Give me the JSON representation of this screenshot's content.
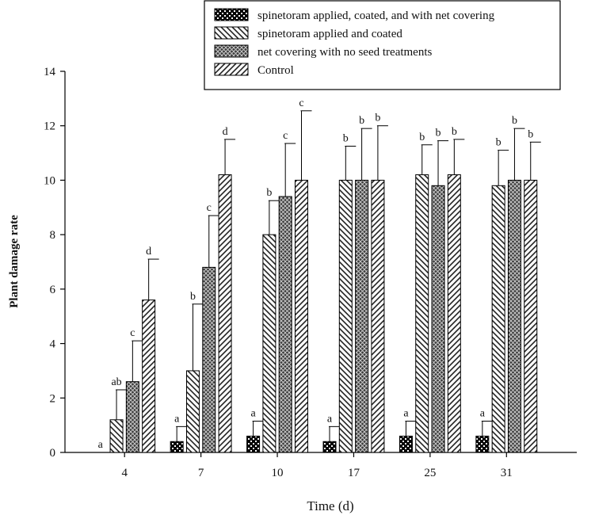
{
  "chart_data": {
    "type": "bar",
    "title": "",
    "xlabel": "Time (d)",
    "ylabel": "Plant damage rate",
    "ylim": [
      0,
      14
    ],
    "yticks": [
      0,
      2,
      4,
      6,
      8,
      10,
      12,
      14
    ],
    "grid": false,
    "legend_position": "top-right",
    "categories": [
      "4",
      "7",
      "10",
      "17",
      "25",
      "31"
    ],
    "series": [
      {
        "name": "spinetoram applied, coated, and with net covering",
        "pattern": "dots",
        "values": [
          0,
          0.4,
          0.6,
          0.4,
          0.6,
          0.6
        ],
        "errors": [
          0,
          0.55,
          0.55,
          0.55,
          0.55,
          0.55
        ],
        "letters": [
          "a",
          "a",
          "a",
          "a",
          "a",
          "a"
        ]
      },
      {
        "name": "spinetoram applied and coated",
        "pattern": "back-diagonal",
        "values": [
          1.2,
          3.0,
          8.0,
          10.0,
          10.2,
          9.8
        ],
        "errors": [
          1.1,
          2.45,
          1.25,
          1.25,
          1.1,
          1.3
        ],
        "letters": [
          "ab",
          "b",
          "b",
          "b",
          "b",
          "b"
        ]
      },
      {
        "name": "net covering with no seed treatments",
        "pattern": "crosshatch",
        "values": [
          2.6,
          6.8,
          9.4,
          10.0,
          9.8,
          10.0
        ],
        "errors": [
          1.5,
          1.9,
          1.95,
          1.9,
          1.65,
          1.9
        ],
        "letters": [
          "c",
          "c",
          "c",
          "b",
          "b",
          "b"
        ]
      },
      {
        "name": "Control",
        "pattern": "forward-diagonal",
        "values": [
          5.6,
          10.2,
          10.0,
          10.0,
          10.2,
          10.0
        ],
        "errors": [
          1.5,
          1.3,
          2.55,
          2.0,
          1.3,
          1.4
        ],
        "letters": [
          "d",
          "d",
          "c",
          "b",
          "b",
          "b"
        ]
      }
    ]
  }
}
